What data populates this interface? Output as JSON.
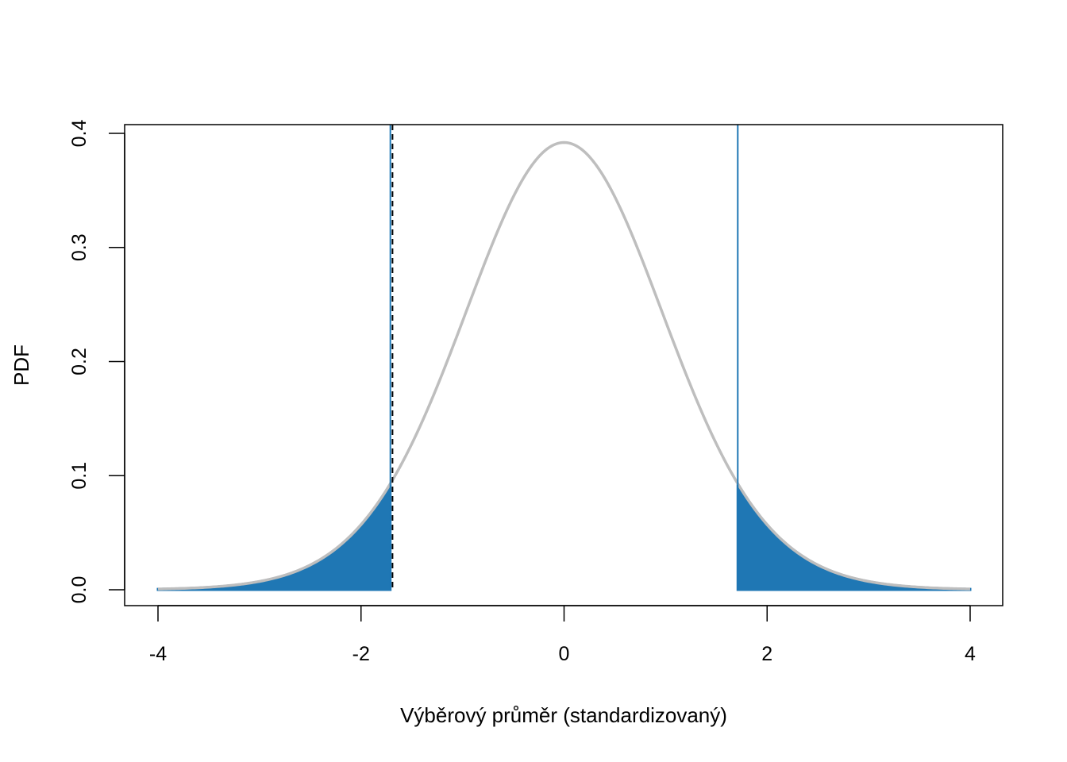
{
  "chart_data": {
    "type": "area",
    "title": "",
    "xlabel": "Výběrový průměr (standardizovaný)",
    "ylabel": "PDF",
    "xlim": [
      -4,
      4
    ],
    "ylim": [
      0,
      0.4
    ],
    "x_ticks": [
      -4,
      -2,
      0,
      2,
      4
    ],
    "x_tick_labels": [
      "-4",
      "-2",
      "0",
      "2",
      "4"
    ],
    "y_ticks": [
      0.0,
      0.1,
      0.2,
      0.3,
      0.4
    ],
    "y_tick_labels": [
      "0.0",
      "0.1",
      "0.2",
      "0.3",
      "0.4"
    ],
    "grid": false,
    "distribution": {
      "kind": "t",
      "df": 24,
      "x_range": [
        -4,
        4
      ],
      "peak_y": 0.392,
      "curve_color": "#bebebe"
    },
    "critical_values": [
      -1.711,
      1.711
    ],
    "critical_line_color": "#1f77b4",
    "shaded_tails": [
      {
        "from": -4,
        "to": -1.711
      },
      {
        "from": 1.711,
        "to": 4
      }
    ],
    "fill_color": "#1f77b4",
    "observed_statistic": -1.69,
    "observed_line_color": "#000000",
    "observed_line_style": "dashed"
  }
}
